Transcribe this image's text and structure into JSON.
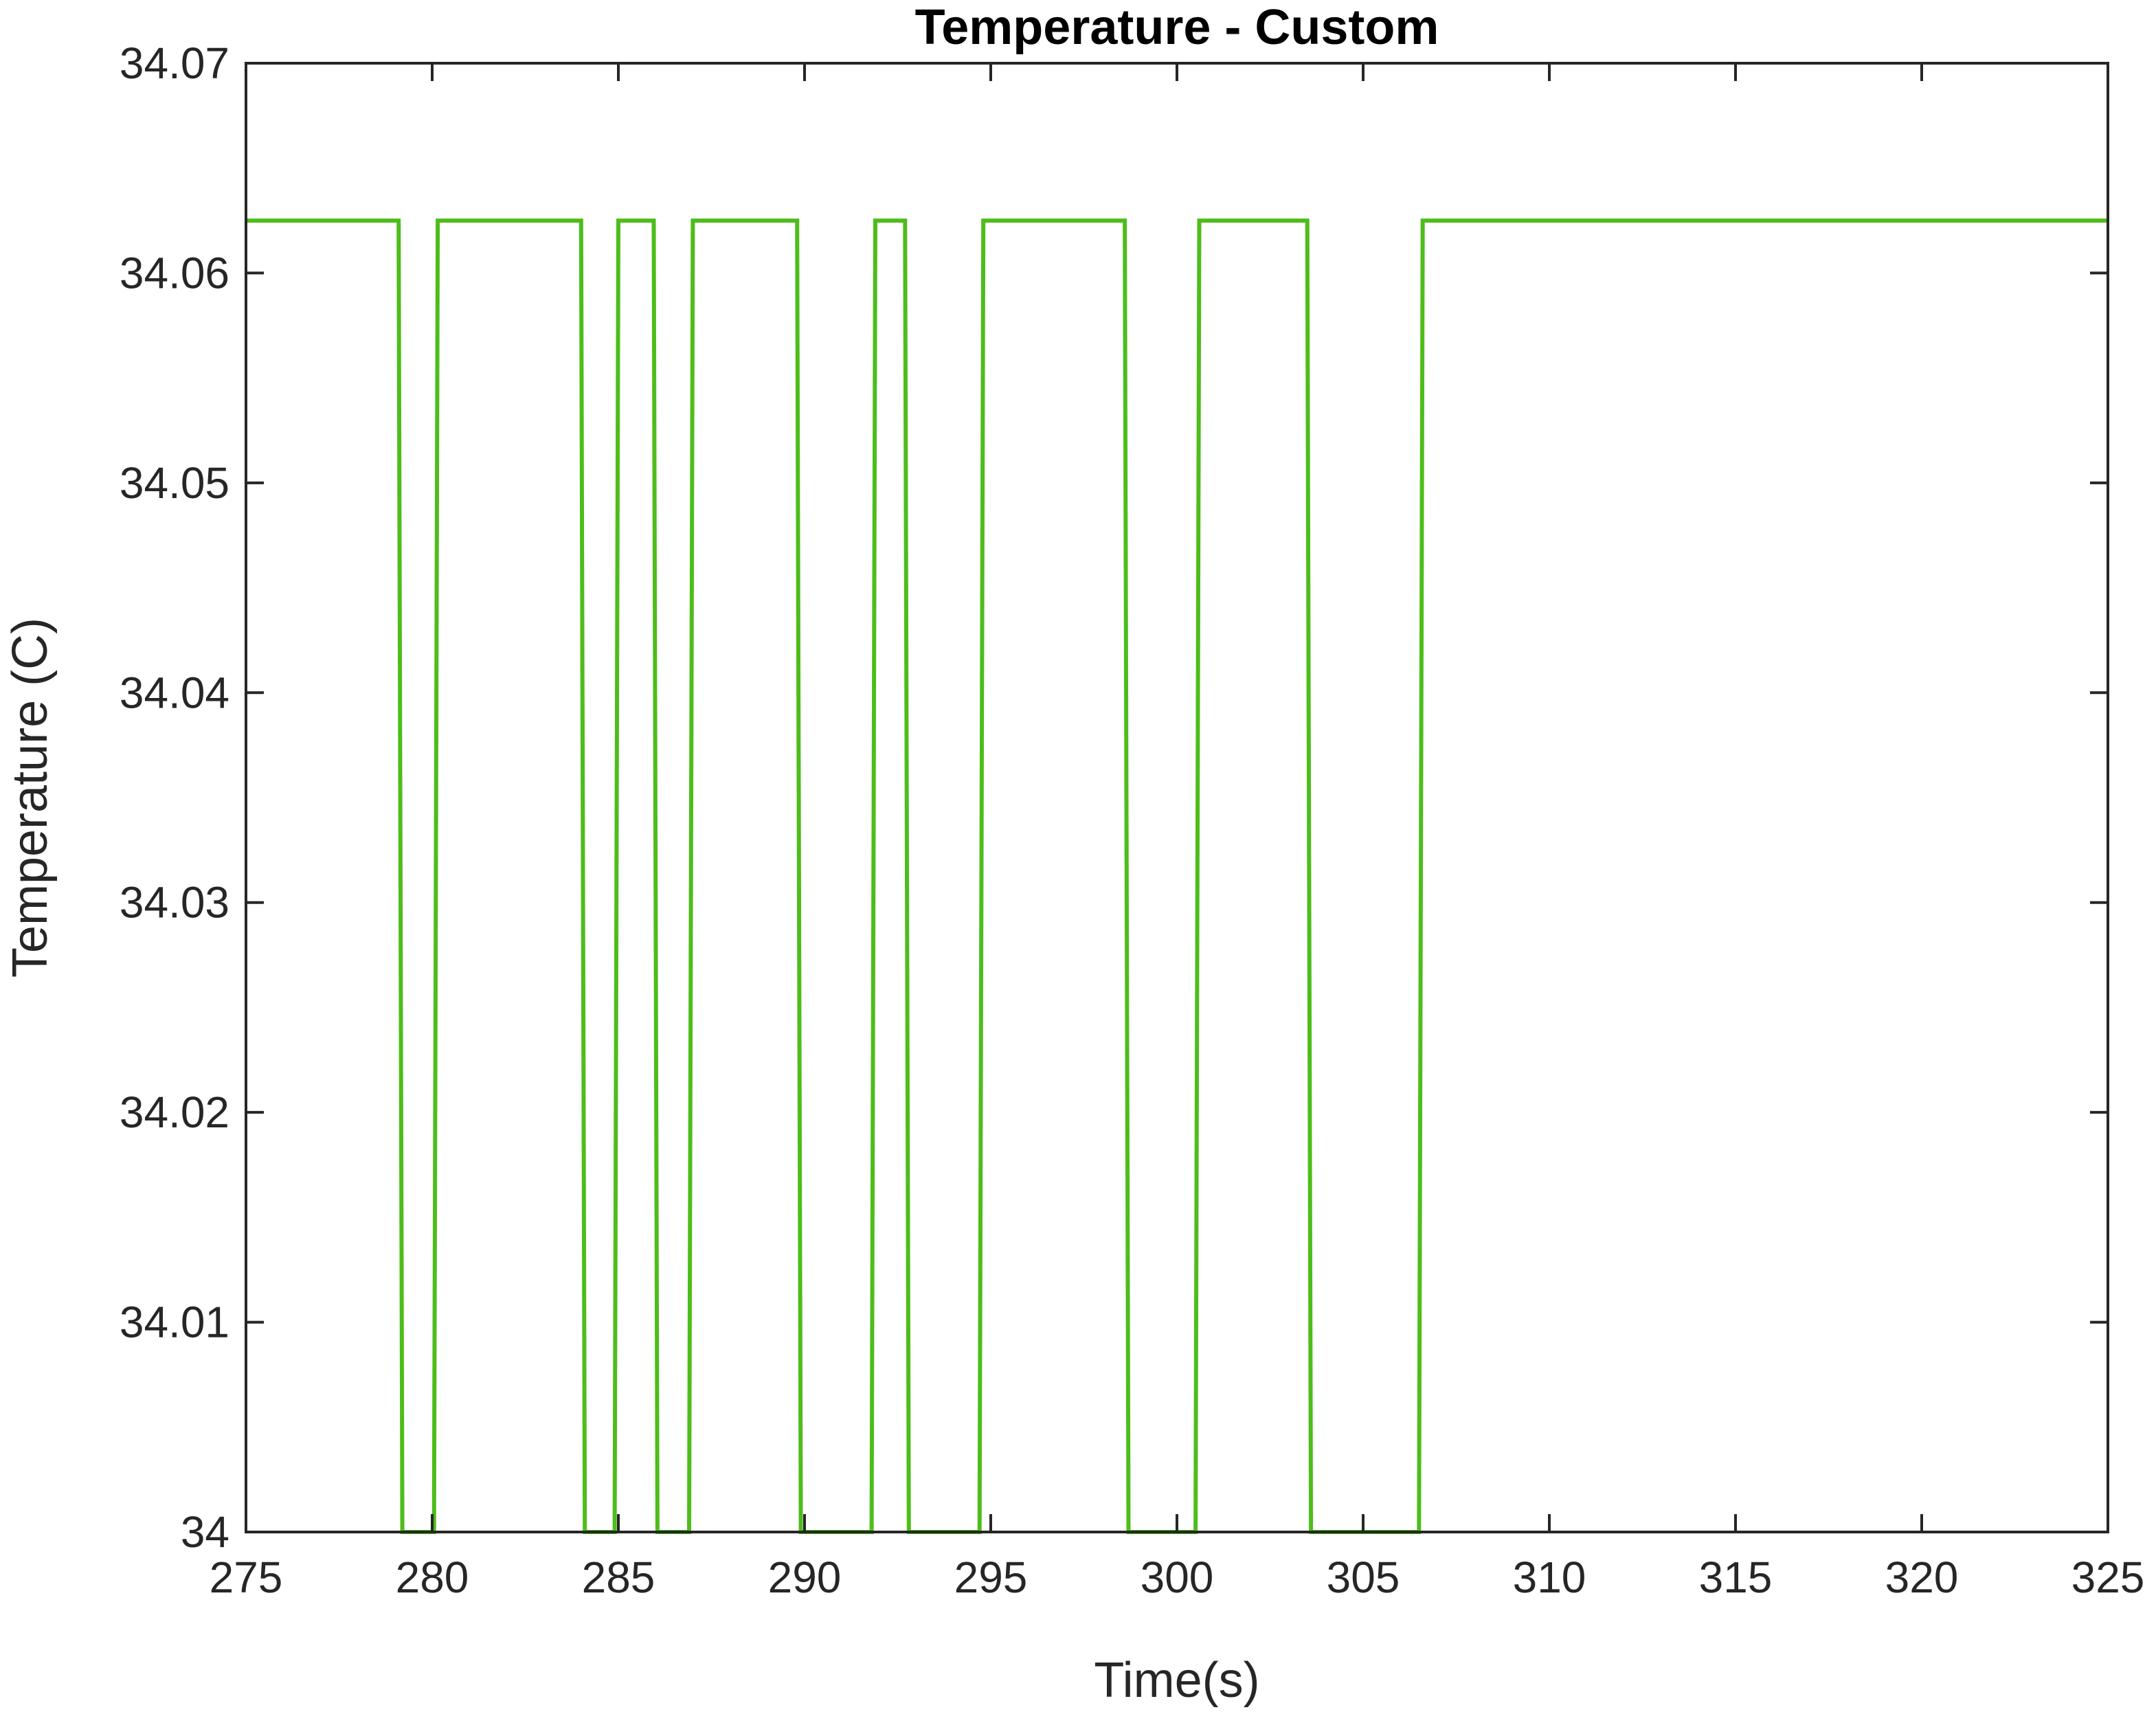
{
  "chart_data": {
    "type": "line",
    "title": "Temperature - Custom",
    "xlabel": "Time(s)",
    "ylabel": "Temperature (C)",
    "xlim": [
      275,
      325
    ],
    "ylim": [
      34,
      34.07
    ],
    "xticks": [
      275,
      280,
      285,
      290,
      295,
      300,
      305,
      310,
      315,
      320,
      325
    ],
    "xtick_labels": [
      "275",
      "280",
      "285",
      "290",
      "295",
      "300",
      "305",
      "310",
      "315",
      "320",
      "325"
    ],
    "yticks": [
      34,
      34.01,
      34.02,
      34.03,
      34.04,
      34.05,
      34.06,
      34.07
    ],
    "ytick_labels": [
      "34",
      "34.01",
      "34.02",
      "34.03",
      "34.04",
      "34.05",
      "34.06",
      "34.07"
    ],
    "grid": false,
    "series": [
      {
        "color": "#4dbd1a",
        "step": true,
        "x": [
          275,
          279.1,
          279.2,
          280.05,
          280.15,
          284.0,
          284.1,
          284.9,
          285.0,
          285.95,
          286.05,
          286.9,
          287.0,
          289.8,
          289.9,
          291.8,
          291.9,
          292.7,
          292.8,
          294.7,
          294.8,
          298.6,
          298.7,
          300.5,
          300.6,
          303.5,
          303.6,
          306.5,
          306.6,
          325
        ],
        "y": [
          34.0625,
          34.0625,
          34,
          34,
          34.0625,
          34.0625,
          34,
          34,
          34.0625,
          34.0625,
          34,
          34,
          34.0625,
          34.0625,
          34,
          34,
          34.0625,
          34.0625,
          34,
          34,
          34.0625,
          34.0625,
          34,
          34,
          34.0625,
          34.0625,
          34,
          34,
          34.0625,
          34.0625
        ]
      }
    ]
  }
}
